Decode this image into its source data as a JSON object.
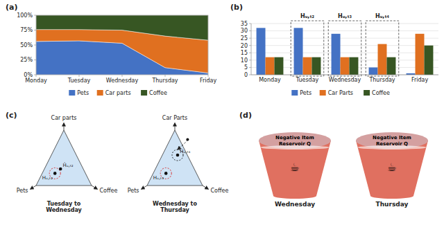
{
  "chart_data": [
    {
      "type": "area",
      "title": "(a)",
      "stacked": true,
      "categories": [
        "Monday",
        "Tuesday",
        "Wednesday",
        "Thursday",
        "Friday"
      ],
      "series": [
        {
          "name": "Pets",
          "color": "#4472C4",
          "values": [
            0.56,
            0.57,
            0.53,
            0.12,
            0.03
          ]
        },
        {
          "name": "Car parts",
          "color": "#E07020",
          "values": [
            0.2,
            0.19,
            0.22,
            0.53,
            0.55
          ]
        },
        {
          "name": "Coffee",
          "color": "#375623",
          "values": [
            0.24,
            0.24,
            0.25,
            0.35,
            0.42
          ]
        }
      ],
      "ylim": [
        0,
        1
      ],
      "yticks": [
        {
          "value": 0,
          "label": "0%"
        },
        {
          "value": 0.25,
          "label": "25%"
        },
        {
          "value": 0.5,
          "label": "50%"
        },
        {
          "value": 0.75,
          "label": "75%"
        },
        {
          "value": 1,
          "label": "100%"
        }
      ],
      "legend": "bottom"
    },
    {
      "type": "bar",
      "title": "(b)",
      "categories": [
        "Monday",
        "Tuesday",
        "Wednesday",
        "Thursday",
        "Friday"
      ],
      "series": [
        {
          "name": "Pets",
          "color": "#4472C4",
          "values": [
            32,
            32,
            28,
            5,
            1
          ]
        },
        {
          "name": "Car Parts",
          "color": "#E07020",
          "values": [
            12,
            12,
            12,
            21,
            28
          ]
        },
        {
          "name": "Coffee",
          "color": "#375623",
          "values": [
            12,
            12,
            12,
            12,
            20
          ]
        }
      ],
      "ylim": [
        0,
        35
      ],
      "yticks": [
        0,
        5,
        10,
        15,
        20,
        25,
        30,
        35
      ],
      "grid": true,
      "legend": "bottom",
      "annotations": [
        {
          "text": "Hᵤ,ₜ₂",
          "category": "Tuesday"
        },
        {
          "text": "Hᵤ,ₜ₃",
          "category": "Wednesday"
        },
        {
          "text": "Hᵤ,ₜ₄",
          "category": "Thursday"
        }
      ]
    },
    {
      "type": "diagram",
      "title": "(c)",
      "annotations": [
        "Tuesday to\nWednesday",
        "Car parts",
        "Pets",
        "Coffee",
        "Ĥᵤ,ₜ₂",
        "Hᵤ,ₜ₂",
        "Wednesday to\nThursday",
        "Car Parts",
        "Pets",
        "Coffee",
        "Ĥᵤ,ₜ₄",
        "Hᵤ,ₜ₃"
      ]
    },
    {
      "type": "diagram",
      "title": "(d)",
      "colors": [
        "#E07060",
        "#D4A0A0"
      ],
      "annotations": [
        "Negative Item\nReservoir Q",
        "☕",
        "Wednesday",
        "Negative Item\nReservoir Q",
        "☕",
        "Thursday"
      ]
    }
  ]
}
